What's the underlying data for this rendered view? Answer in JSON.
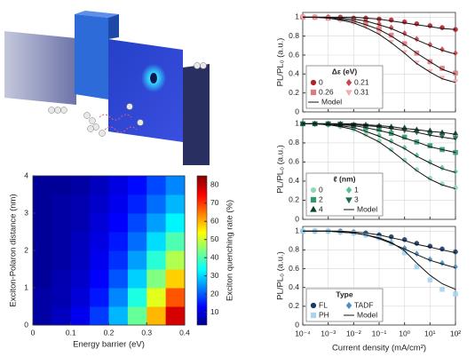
{
  "chart_data": [
    {
      "type": "heatmap",
      "xlabel": "Energy barrier (eV)",
      "ylabel": "Exciton-Polaron distance (nm)",
      "colorbar_label": "Exciton quenching rate (%)",
      "colormap": "jet",
      "x": [
        0.025,
        0.075,
        0.125,
        0.175,
        0.225,
        0.275,
        0.325,
        0.375
      ],
      "y": [
        0.25,
        0.75,
        1.25,
        1.75,
        2.25,
        2.75,
        3.25,
        3.75
      ],
      "z": [
        [
          6,
          8,
          12,
          18,
          28,
          42,
          60,
          78
        ],
        [
          6,
          7,
          10,
          15,
          24,
          36,
          52,
          68
        ],
        [
          5,
          7,
          9,
          13,
          20,
          30,
          44,
          58
        ],
        [
          5,
          6,
          8,
          12,
          17,
          26,
          37,
          48
        ],
        [
          5,
          6,
          8,
          11,
          15,
          22,
          31,
          40
        ],
        [
          5,
          6,
          7,
          10,
          13,
          19,
          26,
          33
        ],
        [
          5,
          6,
          7,
          9,
          12,
          16,
          22,
          28
        ],
        [
          5,
          5,
          6,
          8,
          11,
          14,
          19,
          24
        ]
      ],
      "xlim": [
        0,
        0.4
      ],
      "xticks": [
        0,
        0.1,
        0.2,
        0.3,
        0.4
      ],
      "ylim": [
        0,
        4
      ],
      "yticks": [
        0,
        1,
        2,
        3,
        4
      ],
      "zlim": [
        3,
        85
      ],
      "zticks": [
        10,
        20,
        30,
        40,
        50,
        60,
        70,
        80
      ]
    },
    {
      "type": "line",
      "ylabel": "PL/PL₀ (a.u.)",
      "xscale": "log",
      "grid": true,
      "legend": "lower left",
      "legend_title": "Δε (eV)",
      "model_name": "Model",
      "xticklabels": false,
      "xlim": [
        0.0001,
        100
      ],
      "xticks": [
        0.0001,
        0.001,
        0.01,
        0.1,
        1,
        10,
        100
      ],
      "ylim": [
        0,
        1.05
      ],
      "yticks": [
        0,
        0.2,
        0.4,
        0.6,
        0.8,
        1
      ],
      "x": [
        0.0001,
        0.0003,
        0.001,
        0.003,
        0.01,
        0.03,
        0.1,
        0.3,
        1,
        3,
        10,
        30,
        100
      ],
      "series": [
        {
          "name": "0",
          "color": "#b5202b",
          "marker": "circle",
          "values": [
            1,
            1,
            1,
            1,
            0.99,
            0.99,
            0.98,
            0.97,
            0.95,
            0.93,
            0.91,
            0.89,
            0.87
          ],
          "model": [
            1,
            1,
            1,
            1,
            1,
            0.99,
            0.98,
            0.96,
            0.94,
            0.92,
            0.9,
            0.88,
            0.87
          ]
        },
        {
          "name": "0.21",
          "color": "#cc4650",
          "marker": "diamond",
          "values": [
            1,
            1,
            1,
            0.99,
            0.98,
            0.96,
            0.93,
            0.89,
            0.83,
            0.77,
            0.71,
            0.66,
            0.62
          ],
          "model": [
            1,
            1,
            1,
            0.99,
            0.98,
            0.96,
            0.92,
            0.88,
            0.82,
            0.76,
            0.7,
            0.65,
            0.61
          ]
        },
        {
          "name": "0.26",
          "color": "#e07a80",
          "marker": "square",
          "values": [
            1,
            1,
            0.99,
            0.98,
            0.96,
            0.93,
            0.88,
            0.81,
            0.72,
            0.62,
            0.53,
            0.46,
            0.41
          ],
          "model": [
            1,
            1,
            0.99,
            0.98,
            0.96,
            0.92,
            0.87,
            0.8,
            0.71,
            0.62,
            0.53,
            0.45,
            0.4
          ]
        },
        {
          "name": "0.31",
          "color": "#f0aeb2",
          "marker": "tridown",
          "values": [
            1,
            1,
            0.99,
            0.97,
            0.94,
            0.9,
            0.83,
            0.74,
            0.63,
            0.52,
            0.43,
            0.36,
            0.32
          ],
          "model": [
            1,
            1,
            0.99,
            0.97,
            0.94,
            0.89,
            0.82,
            0.73,
            0.62,
            0.51,
            0.42,
            0.35,
            0.31
          ]
        }
      ]
    },
    {
      "type": "line",
      "ylabel": "PL/PL₀ (a.u.)",
      "xscale": "log",
      "grid": true,
      "legend": "lower left",
      "legend_title": "ℓ (nm)",
      "model_name": "Model",
      "xticklabels": false,
      "xlim": [
        0.0001,
        100
      ],
      "xticks": [
        0.0001,
        0.001,
        0.01,
        0.1,
        1,
        10,
        100
      ],
      "ylim": [
        0,
        1.05
      ],
      "yticks": [
        0,
        0.2,
        0.4,
        0.6,
        0.8,
        1
      ],
      "x": [
        0.0001,
        0.0003,
        0.001,
        0.003,
        0.01,
        0.03,
        0.1,
        0.3,
        1,
        3,
        10,
        30,
        100
      ],
      "series": [
        {
          "name": "0",
          "color": "#93d8b4",
          "marker": "circle",
          "values": [
            1,
            1,
            0.99,
            0.97,
            0.94,
            0.89,
            0.82,
            0.73,
            0.62,
            0.52,
            0.43,
            0.37,
            0.33
          ],
          "model": [
            1,
            1,
            0.99,
            0.97,
            0.94,
            0.88,
            0.81,
            0.72,
            0.61,
            0.51,
            0.42,
            0.36,
            0.32
          ]
        },
        {
          "name": "1",
          "color": "#5cbf94",
          "marker": "diamond",
          "values": [
            1,
            1,
            0.99,
            0.98,
            0.96,
            0.93,
            0.88,
            0.82,
            0.75,
            0.67,
            0.6,
            0.54,
            0.5
          ],
          "model": [
            1,
            1,
            0.99,
            0.98,
            0.96,
            0.92,
            0.87,
            0.81,
            0.74,
            0.66,
            0.59,
            0.53,
            0.49
          ]
        },
        {
          "name": "2",
          "color": "#2f9a6c",
          "marker": "square",
          "values": [
            1,
            1,
            1,
            0.99,
            0.98,
            0.96,
            0.94,
            0.9,
            0.86,
            0.81,
            0.77,
            0.73,
            0.7
          ],
          "model": [
            1,
            1,
            1,
            0.99,
            0.98,
            0.96,
            0.93,
            0.9,
            0.85,
            0.81,
            0.76,
            0.73,
            0.7
          ]
        },
        {
          "name": "3",
          "color": "#1c6a48",
          "marker": "tridown",
          "values": [
            1,
            1,
            1,
            1,
            0.99,
            0.98,
            0.97,
            0.95,
            0.93,
            0.91,
            0.89,
            0.87,
            0.85
          ],
          "model": [
            1,
            1,
            1,
            1,
            0.99,
            0.98,
            0.97,
            0.95,
            0.93,
            0.91,
            0.88,
            0.86,
            0.84
          ]
        },
        {
          "name": "4",
          "color": "#0d4028",
          "marker": "triup",
          "values": [
            1,
            1,
            1,
            1,
            0.99,
            0.99,
            0.98,
            0.97,
            0.96,
            0.94,
            0.93,
            0.91,
            0.9
          ],
          "model": [
            1,
            1,
            1,
            1,
            1,
            0.99,
            0.98,
            0.97,
            0.95,
            0.94,
            0.92,
            0.91,
            0.89
          ]
        }
      ]
    },
    {
      "type": "line",
      "ylabel": "PL/PL₀ (a.u.)",
      "xlabel": "Current density (mA/cm²)",
      "xscale": "log",
      "grid": true,
      "legend": "lower left",
      "legend_title": "Type",
      "model_name": "Model",
      "xlim": [
        0.0001,
        100
      ],
      "xticks": [
        {
          "value": 0.0001,
          "label": "10⁻⁴"
        },
        {
          "value": 0.001,
          "label": "10⁻³"
        },
        {
          "value": 0.01,
          "label": "10⁻²"
        },
        {
          "value": 0.1,
          "label": "10⁻¹"
        },
        {
          "value": 1,
          "label": "10⁰"
        },
        {
          "value": 10,
          "label": "10¹"
        },
        {
          "value": 100,
          "label": "10²"
        }
      ],
      "ylim": [
        0,
        1.05
      ],
      "yticks": [
        0,
        0.2,
        0.4,
        0.6,
        0.8,
        1
      ],
      "x": [
        0.0001,
        0.0003,
        0.001,
        0.003,
        0.01,
        0.03,
        0.1,
        0.3,
        1,
        3,
        10,
        30,
        100
      ],
      "series": [
        {
          "name": "FL",
          "color": "#163a6c",
          "marker": "circle",
          "values": [
            1,
            1,
            1,
            1,
            0.99,
            0.98,
            0.96,
            0.94,
            0.91,
            0.87,
            0.84,
            0.81,
            0.78
          ],
          "model": [
            1,
            1,
            1,
            1,
            0.99,
            0.98,
            0.96,
            0.93,
            0.9,
            0.86,
            0.83,
            0.8,
            0.77
          ]
        },
        {
          "name": "TADF",
          "color": "#4a8fc2",
          "marker": "diamond",
          "values": [
            1,
            1,
            1,
            0.99,
            0.98,
            0.96,
            0.93,
            0.88,
            0.82,
            0.76,
            0.7,
            0.66,
            0.62
          ],
          "model": [
            1,
            1,
            1,
            0.99,
            0.98,
            0.96,
            0.92,
            0.87,
            0.81,
            0.75,
            0.69,
            0.65,
            0.61
          ]
        },
        {
          "name": "PH",
          "color": "#a6d4f2",
          "marker": "square",
          "values": [
            1,
            1,
            1,
            0.99,
            0.98,
            0.96,
            0.93,
            0.87,
            0.77,
            0.62,
            0.48,
            0.38,
            0.33
          ],
          "model": [
            1,
            1,
            1,
            0.99,
            0.98,
            0.96,
            0.93,
            0.88,
            0.79,
            0.66,
            0.53,
            0.44,
            0.38
          ]
        }
      ]
    }
  ]
}
